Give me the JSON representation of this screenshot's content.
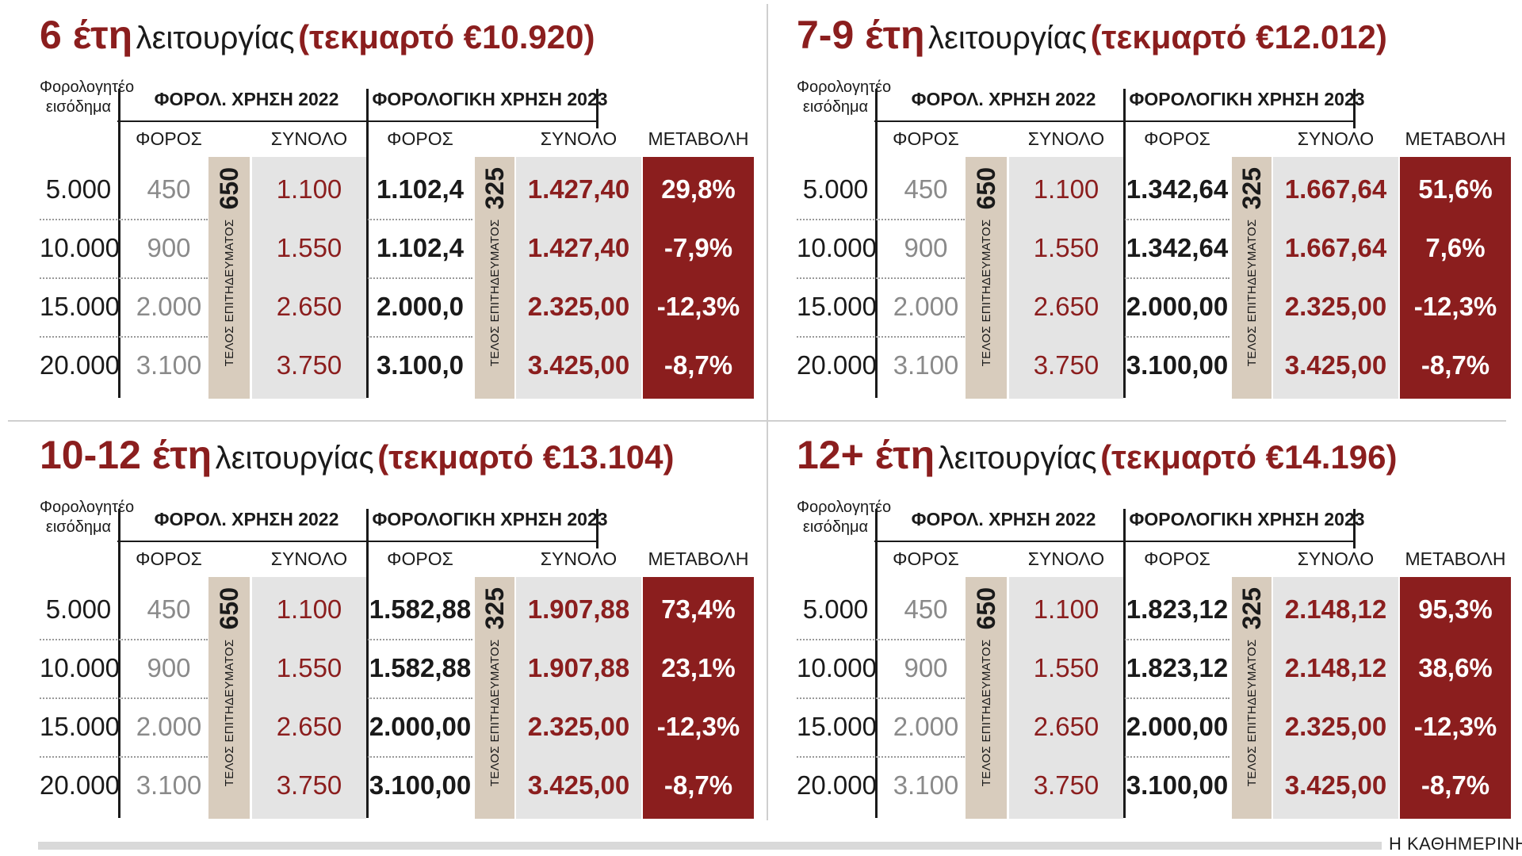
{
  "panels": [
    {
      "years_bold": "6 έτη",
      "operation": "λειτουργίας",
      "estimate": "(τεκμαρτό €10.920)",
      "fee_2023": "325",
      "rows": [
        {
          "income": "5.000",
          "tax22": "450",
          "total22": "1.100",
          "tax23": "1.102,4",
          "total23": "1.427,40",
          "change": "29,8%"
        },
        {
          "income": "10.000",
          "tax22": "900",
          "total22": "1.550",
          "tax23": "1.102,4",
          "total23": "1.427,40",
          "change": "-7,9%"
        },
        {
          "income": "15.000",
          "tax22": "2.000",
          "total22": "2.650",
          "tax23": "2.000,0",
          "total23": "2.325,00",
          "change": "-12,3%"
        },
        {
          "income": "20.000",
          "tax22": "3.100",
          "total22": "3.750",
          "tax23": "3.100,0",
          "total23": "3.425,00",
          "change": "-8,7%"
        }
      ]
    },
    {
      "years_bold": "7-9 έτη",
      "operation": "λειτουργίας",
      "estimate": "(τεκμαρτό €12.012)",
      "fee_2023": "325",
      "rows": [
        {
          "income": "5.000",
          "tax22": "450",
          "total22": "1.100",
          "tax23": "1.342,64",
          "total23": "1.667,64",
          "change": "51,6%"
        },
        {
          "income": "10.000",
          "tax22": "900",
          "total22": "1.550",
          "tax23": "1.342,64",
          "total23": "1.667,64",
          "change": "7,6%"
        },
        {
          "income": "15.000",
          "tax22": "2.000",
          "total22": "2.650",
          "tax23": "2.000,00",
          "total23": "2.325,00",
          "change": "-12,3%"
        },
        {
          "income": "20.000",
          "tax22": "3.100",
          "total22": "3.750",
          "tax23": "3.100,00",
          "total23": "3.425,00",
          "change": "-8,7%"
        }
      ]
    },
    {
      "years_bold": "10-12 έτη",
      "operation": "λειτουργίας",
      "estimate": "(τεκμαρτό €13.104)",
      "fee_2023": "325",
      "rows": [
        {
          "income": "5.000",
          "tax22": "450",
          "total22": "1.100",
          "tax23": "1.582,88",
          "total23": "1.907,88",
          "change": "73,4%"
        },
        {
          "income": "10.000",
          "tax22": "900",
          "total22": "1.550",
          "tax23": "1.582,88",
          "total23": "1.907,88",
          "change": "23,1%"
        },
        {
          "income": "15.000",
          "tax22": "2.000",
          "total22": "2.650",
          "tax23": "2.000,00",
          "total23": "2.325,00",
          "change": "-12,3%"
        },
        {
          "income": "20.000",
          "tax22": "3.100",
          "total22": "3.750",
          "tax23": "3.100,00",
          "total23": "3.425,00",
          "change": "-8,7%"
        }
      ]
    },
    {
      "years_bold": "12+ έτη",
      "operation": "λειτουργίας",
      "estimate": "(τεκμαρτό €14.196)",
      "fee_2023": "325",
      "rows": [
        {
          "income": "5.000",
          "tax22": "450",
          "total22": "1.100",
          "tax23": "1.823,12",
          "total23": "2.148,12",
          "change": "95,3%"
        },
        {
          "income": "10.000",
          "tax22": "900",
          "total22": "1.550",
          "tax23": "1.823,12",
          "total23": "2.148,12",
          "change": "38,6%"
        },
        {
          "income": "15.000",
          "tax22": "2.000",
          "total22": "2.650",
          "tax23": "2.000,00",
          "total23": "2.325,00",
          "change": "-12,3%"
        },
        {
          "income": "20.000",
          "tax22": "3.100",
          "total22": "3.750",
          "tax23": "3.100,00",
          "total23": "3.425,00",
          "change": "-8,7%"
        }
      ]
    }
  ],
  "headers": {
    "income": "Φορολογητέο εισόδημα",
    "group_2022": "ΦΟΡΟΛ. ΧΡΗΣΗ 2022",
    "group_2023": "ΦΟΡΟΛΟΓΙΚΗ ΧΡΗΣΗ 2023",
    "tax": "ΦΟΡΟΣ",
    "total": "ΣΥΝΟΛΟ",
    "change": "ΜΕΤΑΒΟΛΗ",
    "fee_label": "ΤΕΛΟΣ ΕΠΙΤΗΔΕΥΜΑΤΟΣ",
    "fee_2022": "650"
  },
  "source": "Η ΚΑΘΗΜΕΡΙΝΗ",
  "colors": {
    "accent": "#8b1e1e",
    "fee_band": "#d8ccbd",
    "grey_band": "#e4e4e4"
  },
  "chart_data": {
    "type": "table",
    "columns": [
      "Φορολογητέο εισόδημα",
      "ΦΟΡΟΣ 2022",
      "ΣΥΝΟΛΟ 2022",
      "ΦΟΡΟΣ 2023",
      "ΣΥΝΟΛΟ 2023",
      "ΜΕΤΑΒΟΛΗ"
    ],
    "tables": [
      {
        "title": "6 έτη λειτουργίας (τεκμαρτό €10.920)",
        "rows": [
          [
            5000,
            450,
            1100,
            1102.4,
            1427.4,
            29.8
          ],
          [
            10000,
            900,
            1550,
            1102.4,
            1427.4,
            -7.9
          ],
          [
            15000,
            2000,
            2650,
            2000.0,
            2325.0,
            -12.3
          ],
          [
            20000,
            3100,
            3750,
            3100.0,
            3425.0,
            -8.7
          ]
        ]
      },
      {
        "title": "7-9 έτη λειτουργίας (τεκμαρτό €12.012)",
        "rows": [
          [
            5000,
            450,
            1100,
            1342.64,
            1667.64,
            51.6
          ],
          [
            10000,
            900,
            1550,
            1342.64,
            1667.64,
            7.6
          ],
          [
            15000,
            2000,
            2650,
            2000.0,
            2325.0,
            -12.3
          ],
          [
            20000,
            3100,
            3750,
            3100.0,
            3425.0,
            -8.7
          ]
        ]
      },
      {
        "title": "10-12 έτη λειτουργίας (τεκμαρτό €13.104)",
        "rows": [
          [
            5000,
            450,
            1100,
            1582.88,
            1907.88,
            73.4
          ],
          [
            10000,
            900,
            1550,
            1582.88,
            1907.88,
            23.1
          ],
          [
            15000,
            2000,
            2650,
            2000.0,
            2325.0,
            -12.3
          ],
          [
            20000,
            3100,
            3750,
            3100.0,
            3425.0,
            -8.7
          ]
        ]
      },
      {
        "title": "12+ έτη λειτουργίας (τεκμαρτό €14.196)",
        "rows": [
          [
            5000,
            450,
            1100,
            1823.12,
            2148.12,
            95.3
          ],
          [
            10000,
            900,
            1550,
            1823.12,
            2148.12,
            38.6
          ],
          [
            15000,
            2000,
            2650,
            2000.0,
            2325.0,
            -12.3
          ],
          [
            20000,
            3100,
            3750,
            3100.0,
            3425.0,
            -8.7
          ]
        ]
      }
    ]
  }
}
